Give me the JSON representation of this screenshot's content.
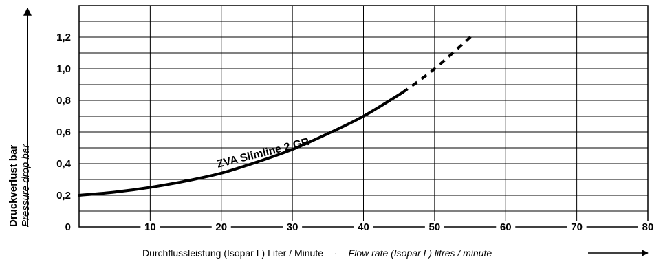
{
  "chart_data": {
    "type": "line",
    "xlabel_de": "Durchflussleistung (Isopar L) Liter / Minute",
    "xlabel_sep": "·",
    "xlabel_en": "Flow rate (Isopar L) litres / minute",
    "ylabel_de": "Druckverlust  bar",
    "ylabel_en": "Pressure drop  bar",
    "xlim": [
      0,
      80
    ],
    "ylim": [
      0,
      1.4
    ],
    "x_ticks": [
      10,
      20,
      30,
      40,
      50,
      60,
      70,
      80
    ],
    "x_tick_labels": [
      "10",
      "20",
      "30",
      "40",
      "50",
      "60",
      "70",
      "80"
    ],
    "y_ticks": [
      0,
      0.2,
      0.4,
      0.6,
      0.8,
      1.0,
      1.2
    ],
    "y_tick_labels": [
      "0",
      "0,2",
      "0,4",
      "0,6",
      "0,8",
      "1,0",
      "1,2"
    ],
    "grid": true,
    "series": [
      {
        "name": "ZVA Slimline 2 GR",
        "solid": {
          "x": [
            0,
            5,
            10,
            15,
            20,
            25,
            30,
            35,
            40,
            45.5
          ],
          "y": [
            0.2,
            0.22,
            0.25,
            0.29,
            0.34,
            0.41,
            0.49,
            0.59,
            0.7,
            0.85
          ]
        },
        "dashed": {
          "x": [
            45.5,
            50,
            55.5
          ],
          "y": [
            0.85,
            1.0,
            1.22
          ]
        }
      }
    ]
  }
}
